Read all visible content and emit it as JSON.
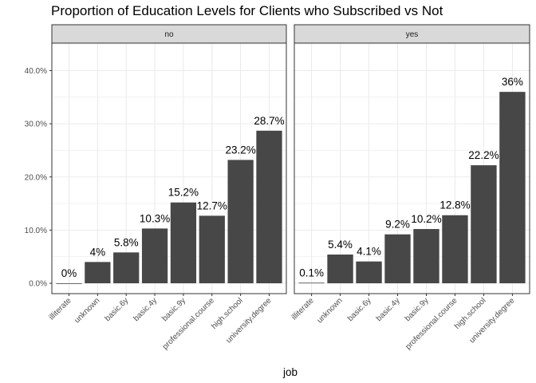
{
  "chart_data": {
    "type": "bar",
    "title": "Proportion of Education Levels for Clients who Subscribed vs Not",
    "xlabel": "job",
    "ylabel": "",
    "categories": [
      "illiterate",
      "unknown",
      "basic.6y",
      "basic.4y",
      "basic.9y",
      "professional.course",
      "high.school",
      "university.degree"
    ],
    "ylim": [
      0,
      0.45
    ],
    "yticks": [
      0,
      0.1,
      0.2,
      0.3,
      0.4
    ],
    "ytick_labels": [
      "0.0%",
      "10.0%",
      "20.0%",
      "30.0%",
      "40.0%"
    ],
    "grid": true,
    "bar_color": "#474747",
    "panel_border_color": "#333333",
    "strip_fill": "#d9d9d9",
    "grid_color": "#ebebeb",
    "facets": [
      {
        "label": "no",
        "values": [
          0.0,
          0.04,
          0.058,
          0.103,
          0.152,
          0.127,
          0.232,
          0.287
        ],
        "value_labels": [
          "0%",
          "4%",
          "5.8%",
          "10.3%",
          "15.2%",
          "12.7%",
          "23.2%",
          "28.7%"
        ]
      },
      {
        "label": "yes",
        "values": [
          0.001,
          0.054,
          0.041,
          0.092,
          0.102,
          0.128,
          0.222,
          0.36
        ],
        "value_labels": [
          "0.1%",
          "5.4%",
          "4.1%",
          "9.2%",
          "10.2%",
          "12.8%",
          "22.2%",
          "36%"
        ]
      }
    ]
  }
}
